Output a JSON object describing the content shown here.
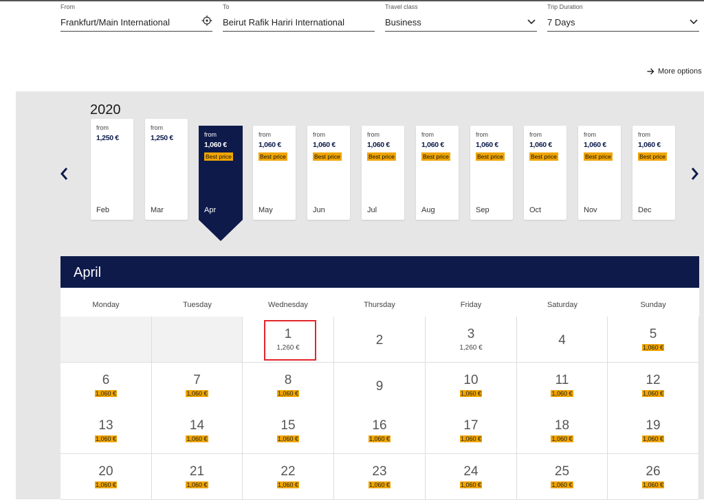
{
  "search": {
    "from_label": "From",
    "from_value": "Frankfurt/Main International",
    "to_label": "To",
    "to_value": "Beirut Rafik Hariri International",
    "class_label": "Travel class",
    "class_value": "Business",
    "duration_label": "Trip Duration",
    "duration_value": "7 Days"
  },
  "more_options": "More options",
  "year": "2020",
  "months": [
    {
      "from": "from",
      "price": "1,250 €",
      "badge": "",
      "name": "Feb"
    },
    {
      "from": "from",
      "price": "1,250 €",
      "badge": "",
      "name": "Mar"
    },
    {
      "from": "from",
      "price": "1,060 €",
      "badge": "Best price",
      "name": "Apr"
    },
    {
      "from": "from",
      "price": "1,060 €",
      "badge": "Best price",
      "name": "May"
    },
    {
      "from": "from",
      "price": "1,060 €",
      "badge": "Best price",
      "name": "Jun"
    },
    {
      "from": "from",
      "price": "1,060 €",
      "badge": "Best price",
      "name": "Jul"
    },
    {
      "from": "from",
      "price": "1,060 €",
      "badge": "Best price",
      "name": "Aug"
    },
    {
      "from": "from",
      "price": "1,060 €",
      "badge": "Best price",
      "name": "Sep"
    },
    {
      "from": "from",
      "price": "1,060 €",
      "badge": "Best price",
      "name": "Oct"
    },
    {
      "from": "from",
      "price": "1,060 €",
      "badge": "Best price",
      "name": "Nov"
    },
    {
      "from": "from",
      "price": "1,060 €",
      "badge": "Best price",
      "name": "Dec"
    }
  ],
  "selected_month_index": 2,
  "calendar": {
    "title": "April",
    "weekdays": [
      "Monday",
      "Tuesday",
      "Wednesday",
      "Thursday",
      "Friday",
      "Saturday",
      "Sunday"
    ],
    "weeks": [
      [
        {
          "day": "",
          "price": "",
          "best": false
        },
        {
          "day": "",
          "price": "",
          "best": false
        },
        {
          "day": "1",
          "price": "1,260 €",
          "best": false
        },
        {
          "day": "2",
          "price": "",
          "best": false
        },
        {
          "day": "3",
          "price": "1,260 €",
          "best": false
        },
        {
          "day": "4",
          "price": "",
          "best": false
        },
        {
          "day": "5",
          "price": "1,060 €",
          "best": true
        }
      ],
      [
        {
          "day": "6",
          "price": "1,060 €",
          "best": true
        },
        {
          "day": "7",
          "price": "1,060 €",
          "best": true
        },
        {
          "day": "8",
          "price": "1,060 €",
          "best": true
        },
        {
          "day": "9",
          "price": "",
          "best": false
        },
        {
          "day": "10",
          "price": "1,060 €",
          "best": true
        },
        {
          "day": "11",
          "price": "1,060 €",
          "best": true
        },
        {
          "day": "12",
          "price": "1,060 €",
          "best": true
        }
      ],
      [
        {
          "day": "13",
          "price": "1,060 €",
          "best": true
        },
        {
          "day": "14",
          "price": "1,060 €",
          "best": true
        },
        {
          "day": "15",
          "price": "1,060 €",
          "best": true
        },
        {
          "day": "16",
          "price": "1,060 €",
          "best": true
        },
        {
          "day": "17",
          "price": "1,060 €",
          "best": true
        },
        {
          "day": "18",
          "price": "1,060 €",
          "best": true
        },
        {
          "day": "19",
          "price": "1,060 €",
          "best": true
        }
      ],
      [
        {
          "day": "20",
          "price": "1,060 €",
          "best": true
        },
        {
          "day": "21",
          "price": "1,060 €",
          "best": true
        },
        {
          "day": "22",
          "price": "1,060 €",
          "best": true
        },
        {
          "day": "23",
          "price": "1,060 €",
          "best": true
        },
        {
          "day": "24",
          "price": "1,060 €",
          "best": true
        },
        {
          "day": "25",
          "price": "1,060 €",
          "best": true
        },
        {
          "day": "26",
          "price": "1,060 €",
          "best": true
        }
      ]
    ]
  },
  "colors": {
    "navy": "#0e1a4a",
    "best_price": "#f0a500",
    "highlight": "#e3242b"
  }
}
